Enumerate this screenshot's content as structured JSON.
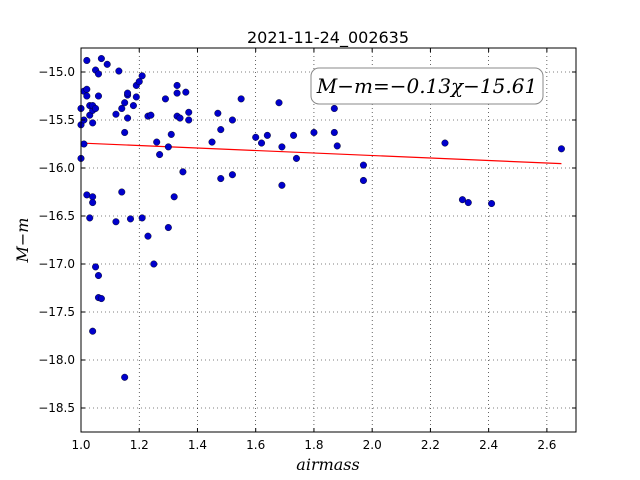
{
  "chart_data": {
    "type": "scatter",
    "title": "2021-11-24_002635",
    "xlabel": "airmass",
    "ylabel": "M−m",
    "xlim": [
      1.0,
      2.7
    ],
    "ylim": [
      -18.75,
      -14.75
    ],
    "xticks": [
      1.0,
      1.2,
      1.4,
      1.6,
      1.8,
      2.0,
      2.2,
      2.4,
      2.6
    ],
    "xtick_labels": [
      "1.0",
      "1.2",
      "1.4",
      "1.6",
      "1.8",
      "2.0",
      "2.2",
      "2.4",
      "2.6"
    ],
    "yticks": [
      -15.0,
      -15.5,
      -16.0,
      -16.5,
      -17.0,
      -17.5,
      -18.0,
      -18.5
    ],
    "ytick_labels": [
      "−15.0",
      "−15.5",
      "−16.0",
      "−16.5",
      "−17.0",
      "−17.5",
      "−18.0",
      "−18.5"
    ],
    "grid": true,
    "annotation": "M−m=−0.13χ−15.61",
    "point_color": "#0000cc",
    "fit_color": "#ff0000",
    "fit_line": {
      "slope": -0.13,
      "intercept": -15.61,
      "x_range": [
        1.0,
        2.65
      ]
    },
    "points": [
      [
        1.0,
        -15.38
      ],
      [
        1.0,
        -15.55
      ],
      [
        1.0,
        -15.9
      ],
      [
        1.01,
        -15.2
      ],
      [
        1.01,
        -15.5
      ],
      [
        1.01,
        -15.75
      ],
      [
        1.02,
        -14.88
      ],
      [
        1.02,
        -15.18
      ],
      [
        1.02,
        -15.25
      ],
      [
        1.02,
        -16.28
      ],
      [
        1.03,
        -16.52
      ],
      [
        1.03,
        -15.35
      ],
      [
        1.03,
        -15.45
      ],
      [
        1.04,
        -15.4
      ],
      [
        1.04,
        -15.53
      ],
      [
        1.04,
        -15.35
      ],
      [
        1.04,
        -16.3
      ],
      [
        1.04,
        -16.36
      ],
      [
        1.04,
        -17.7
      ],
      [
        1.05,
        -14.98
      ],
      [
        1.05,
        -15.38
      ],
      [
        1.05,
        -17.03
      ],
      [
        1.06,
        -15.02
      ],
      [
        1.06,
        -15.25
      ],
      [
        1.06,
        -17.12
      ],
      [
        1.06,
        -17.35
      ],
      [
        1.07,
        -14.86
      ],
      [
        1.07,
        -17.36
      ],
      [
        1.09,
        -14.92
      ],
      [
        1.12,
        -15.44
      ],
      [
        1.12,
        -16.56
      ],
      [
        1.13,
        -14.99
      ],
      [
        1.14,
        -15.38
      ],
      [
        1.14,
        -16.25
      ],
      [
        1.15,
        -15.32
      ],
      [
        1.15,
        -15.63
      ],
      [
        1.15,
        -18.18
      ],
      [
        1.16,
        -15.24
      ],
      [
        1.16,
        -15.22
      ],
      [
        1.16,
        -15.48
      ],
      [
        1.17,
        -16.53
      ],
      [
        1.18,
        -15.35
      ],
      [
        1.19,
        -15.26
      ],
      [
        1.19,
        -15.14
      ],
      [
        1.2,
        -15.1
      ],
      [
        1.21,
        -15.04
      ],
      [
        1.21,
        -16.52
      ],
      [
        1.23,
        -15.46
      ],
      [
        1.23,
        -16.71
      ],
      [
        1.24,
        -15.45
      ],
      [
        1.25,
        -17.0
      ],
      [
        1.26,
        -15.73
      ],
      [
        1.27,
        -15.86
      ],
      [
        1.29,
        -15.28
      ],
      [
        1.3,
        -15.78
      ],
      [
        1.3,
        -16.62
      ],
      [
        1.31,
        -15.65
      ],
      [
        1.32,
        -16.3
      ],
      [
        1.33,
        -15.14
      ],
      [
        1.33,
        -15.22
      ],
      [
        1.33,
        -15.46
      ],
      [
        1.34,
        -15.48
      ],
      [
        1.35,
        -16.04
      ],
      [
        1.36,
        -15.21
      ],
      [
        1.37,
        -15.42
      ],
      [
        1.37,
        -15.5
      ],
      [
        1.45,
        -15.73
      ],
      [
        1.47,
        -15.43
      ],
      [
        1.48,
        -15.6
      ],
      [
        1.48,
        -16.11
      ],
      [
        1.52,
        -15.5
      ],
      [
        1.52,
        -16.07
      ],
      [
        1.55,
        -15.28
      ],
      [
        1.6,
        -15.68
      ],
      [
        1.62,
        -15.74
      ],
      [
        1.64,
        -15.66
      ],
      [
        1.68,
        -15.32
      ],
      [
        1.69,
        -15.78
      ],
      [
        1.69,
        -16.18
      ],
      [
        1.73,
        -15.66
      ],
      [
        1.74,
        -15.9
      ],
      [
        1.8,
        -15.63
      ],
      [
        1.87,
        -15.38
      ],
      [
        1.87,
        -15.63
      ],
      [
        1.88,
        -15.77
      ],
      [
        1.97,
        -15.97
      ],
      [
        1.97,
        -16.13
      ],
      [
        2.25,
        -15.74
      ],
      [
        2.31,
        -16.33
      ],
      [
        2.33,
        -16.36
      ],
      [
        2.41,
        -16.37
      ],
      [
        2.65,
        -15.8
      ]
    ]
  }
}
